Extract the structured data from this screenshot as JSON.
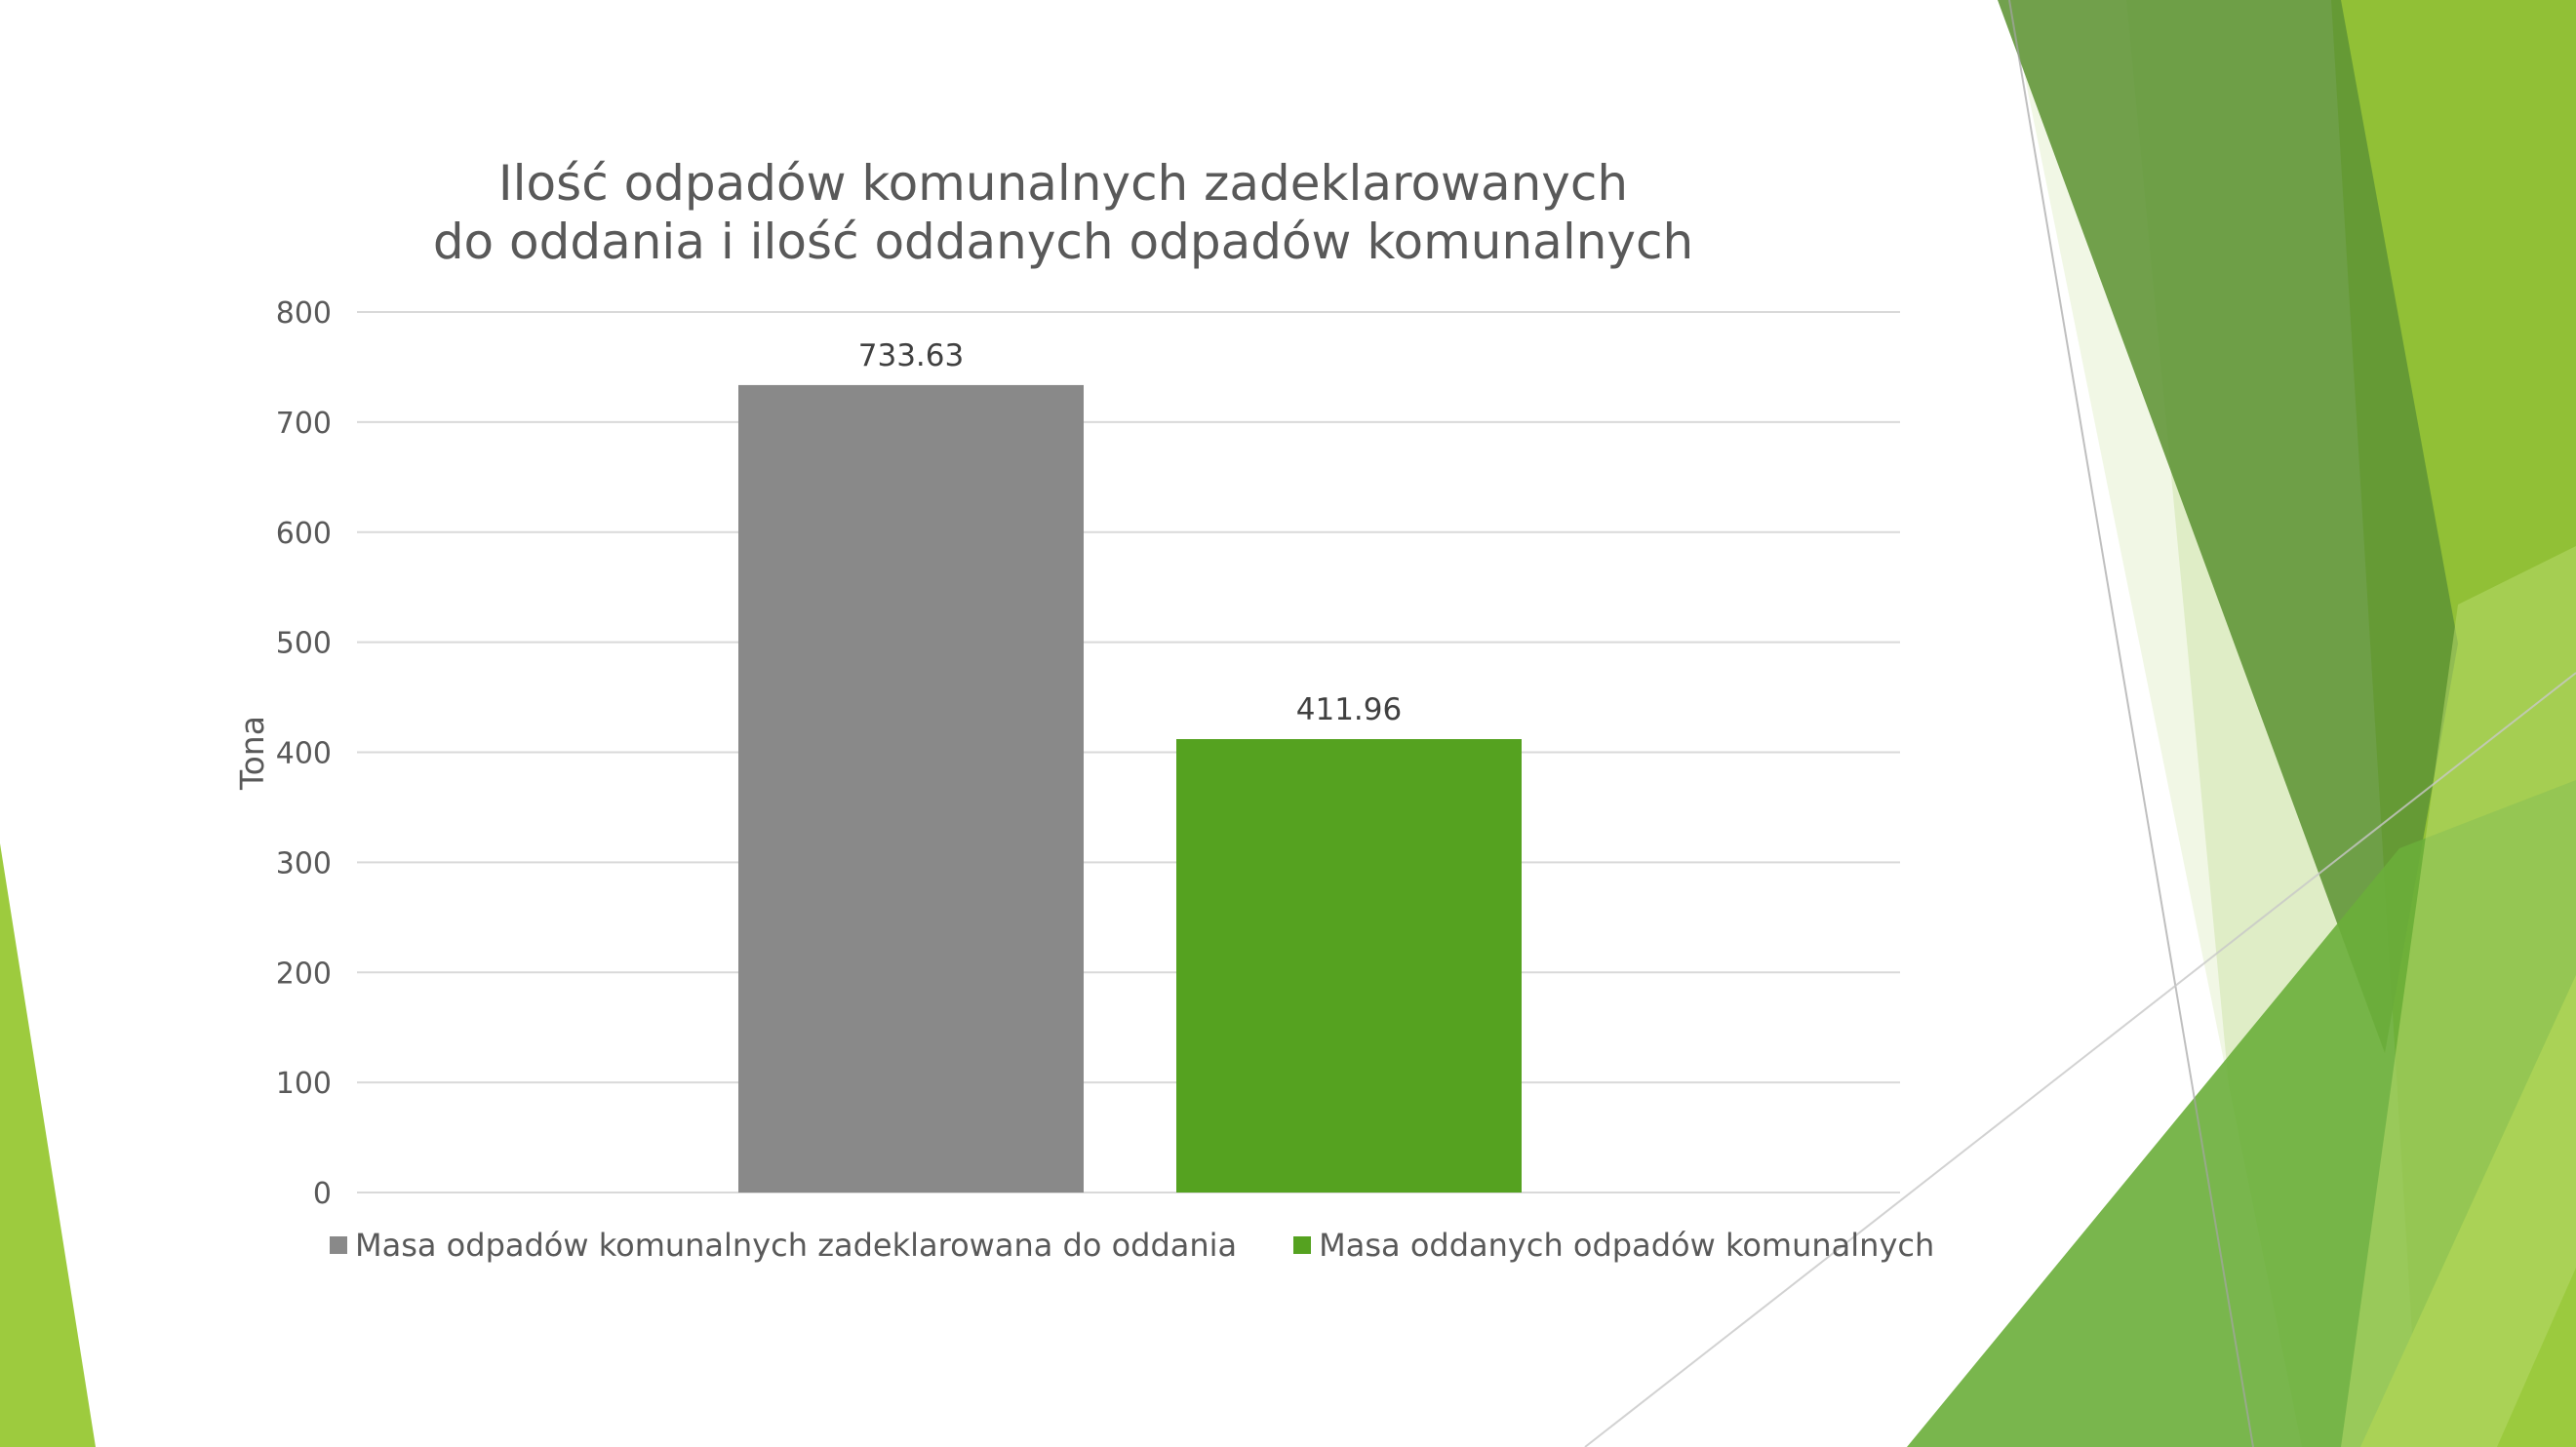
{
  "colors": {
    "series_declared": "#898989",
    "series_delivered": "#55A220",
    "gridline": "#D9D9D9",
    "decor_dark": "#5E9435",
    "decor_mid": "#7FB42E",
    "decor_light": "#9DCB3E",
    "decor_pale": "#DCEBC0"
  },
  "chart_data": {
    "type": "bar",
    "title_lines": [
      "Ilość odpadów komunalnych zadeklarowanych",
      "do oddania i ilość oddanych odpadów komunalnych"
    ],
    "ylabel": "Tona",
    "xlabel": "",
    "ylim": [
      0,
      800
    ],
    "yticks": [
      "0",
      "100",
      "200",
      "300",
      "400",
      "500",
      "600",
      "700",
      "800"
    ],
    "grid": true,
    "legend_position": "bottom",
    "series": [
      {
        "name": "Masa odpadów komunalnych zadeklarowana do oddania",
        "value": 733.63,
        "label": "733.63"
      },
      {
        "name": "Masa oddanych odpadów komunalnych",
        "value": 411.96,
        "label": "411.96"
      }
    ]
  }
}
